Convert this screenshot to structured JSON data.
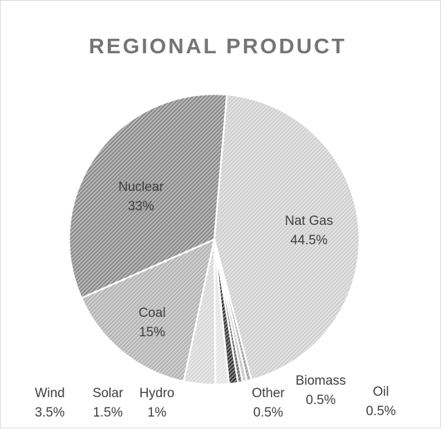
{
  "chart_data": {
    "type": "pie",
    "title": "REGIONAL PRODUCT",
    "slices": [
      {
        "label": "Nat Gas",
        "value": 44.5,
        "display": "44.5%"
      },
      {
        "label": "Oil",
        "value": 0.5,
        "display": "0.5%"
      },
      {
        "label": "Biomass",
        "value": 0.5,
        "display": "0.5%"
      },
      {
        "label": "Other",
        "value": 0.5,
        "display": "0.5%"
      },
      {
        "label": "Hydro",
        "value": 1,
        "display": "1%"
      },
      {
        "label": "Solar",
        "value": 1.5,
        "display": "1.5%"
      },
      {
        "label": "Wind",
        "value": 3.5,
        "display": "3.5%"
      },
      {
        "label": "Coal",
        "value": 15,
        "display": "15%"
      },
      {
        "label": "Nuclear",
        "value": 33,
        "display": "33%"
      }
    ],
    "legend": "none",
    "colors": [
      "#d0d0d0",
      "#9e9e9e",
      "#c4c4c4",
      "#6a6a6a",
      "#3a3a3a",
      "#e4e4e4",
      "#d8d8d8",
      "#b4b4b4",
      "#8c8c8c"
    ]
  }
}
